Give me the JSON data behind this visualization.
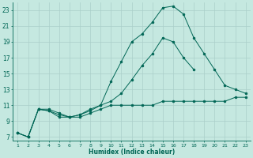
{
  "xlabel": "Humidex (Indice chaleur)",
  "background_color": "#c5e8e0",
  "grid_color": "#aacfca",
  "line_color": "#006655",
  "x_values": [
    1,
    2,
    3,
    4,
    5,
    6,
    7,
    8,
    9,
    10,
    11,
    12,
    13,
    14,
    15,
    16,
    17,
    18,
    19,
    20,
    21,
    22,
    23
  ],
  "line1": [
    7.5,
    7.0,
    10.5,
    10.5,
    10.0,
    9.5,
    9.5,
    10.0,
    10.5,
    11.0,
    11.0,
    11.0,
    11.0,
    11.0,
    11.5,
    11.5,
    11.5,
    11.5,
    11.5,
    11.5,
    11.5,
    12.0,
    12.0
  ],
  "line2": [
    7.5,
    7.0,
    10.5,
    10.3,
    9.8,
    9.5,
    9.8,
    10.3,
    11.0,
    11.5,
    12.5,
    14.2,
    16.0,
    17.5,
    19.5,
    19.0,
    17.0,
    15.5,
    null,
    null,
    null,
    null,
    null
  ],
  "line3": [
    7.5,
    7.0,
    10.5,
    10.3,
    9.5,
    9.5,
    9.8,
    10.5,
    11.0,
    14.0,
    16.5,
    19.0,
    20.0,
    21.5,
    23.3,
    23.5,
    22.5,
    19.5,
    17.5,
    15.5,
    13.5,
    13.0,
    12.5
  ],
  "ylim": [
    6.5,
    24
  ],
  "xlim": [
    0.5,
    23.5
  ],
  "yticks": [
    7,
    9,
    11,
    13,
    15,
    17,
    19,
    21,
    23
  ],
  "xticks": [
    1,
    2,
    3,
    4,
    5,
    6,
    7,
    8,
    9,
    10,
    11,
    12,
    13,
    14,
    15,
    16,
    17,
    18,
    19,
    20,
    21,
    22,
    23
  ],
  "xtick_labels": [
    "1",
    "2",
    "3",
    "4",
    "5",
    "6",
    "7",
    "8",
    "9",
    "10",
    "11",
    "12",
    "13",
    "14",
    "15",
    "16",
    "17",
    "18",
    "19",
    "20",
    "21",
    "22",
    "23"
  ]
}
